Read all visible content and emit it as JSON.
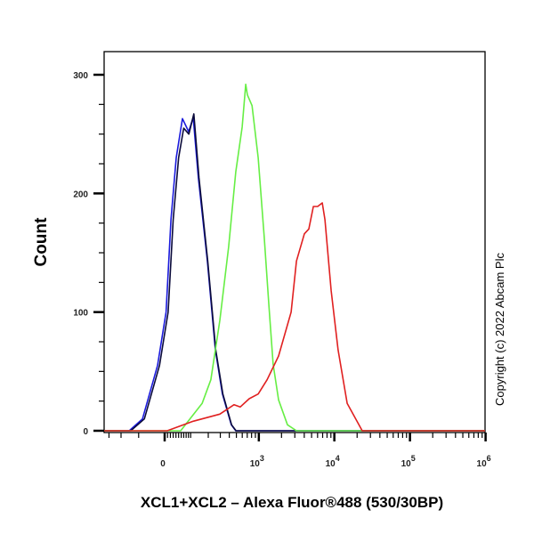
{
  "chart_data": {
    "type": "line",
    "xlabel": "XCL1+XCL2 – Alexa Fluor®488 (530/30BP)",
    "ylabel": "Count",
    "x_scale": "biexponential",
    "xlim": [
      -350,
      1000000
    ],
    "ylim": [
      0,
      300
    ],
    "y_ticks": [
      0,
      100,
      200,
      300
    ],
    "y_tick_labels": [
      "0",
      "100",
      "200",
      "300"
    ],
    "x_ticks": [
      0,
      1000,
      10000,
      100000,
      1000000
    ],
    "x_tick_labels": [
      {
        "base": "0",
        "exp": ""
      },
      {
        "base": "10",
        "exp": "3"
      },
      {
        "base": "10",
        "exp": "4"
      },
      {
        "base": "10",
        "exp": "5"
      },
      {
        "base": "10",
        "exp": "6"
      }
    ],
    "grid": false,
    "legend": "none",
    "series": [
      {
        "color": "#1a1adc",
        "points": [
          [
            -148,
            0
          ],
          [
            -83,
            10
          ],
          [
            -25,
            55
          ],
          [
            5,
            100
          ],
          [
            22,
            178
          ],
          [
            41,
            230
          ],
          [
            65,
            263
          ],
          [
            91,
            252
          ],
          [
            112,
            264
          ],
          [
            139,
            213
          ],
          [
            194,
            143
          ],
          [
            255,
            68
          ],
          [
            321,
            31
          ],
          [
            426,
            5
          ],
          [
            490,
            0
          ]
        ]
      },
      {
        "color": "#0a0a3a",
        "points": [
          [
            -140,
            0
          ],
          [
            -75,
            10
          ],
          [
            -18,
            55
          ],
          [
            12,
            100
          ],
          [
            30,
            178
          ],
          [
            50,
            230
          ],
          [
            70,
            255
          ],
          [
            92,
            250
          ],
          [
            115,
            267
          ],
          [
            142,
            213
          ],
          [
            196,
            143
          ],
          [
            258,
            68
          ],
          [
            326,
            31
          ],
          [
            430,
            5
          ],
          [
            495,
            0
          ]
        ]
      },
      {
        "color": "#66ee44",
        "points": [
          [
            58,
            0
          ],
          [
            160,
            23
          ],
          [
            219,
            43
          ],
          [
            295,
            93
          ],
          [
            392,
            155
          ],
          [
            491,
            218
          ],
          [
            598,
            256
          ],
          [
            669,
            292
          ],
          [
            705,
            283
          ],
          [
            812,
            274
          ],
          [
            980,
            230
          ],
          [
            1180,
            163
          ],
          [
            1360,
            106
          ],
          [
            1550,
            56
          ],
          [
            1830,
            26
          ],
          [
            2400,
            5
          ],
          [
            3150,
            0
          ]
        ]
      },
      {
        "color": "#e02020",
        "points": [
          [
            9,
            0
          ],
          [
            112,
            8
          ],
          [
            295,
            14
          ],
          [
            465,
            22
          ],
          [
            563,
            20
          ],
          [
            743,
            27
          ],
          [
            980,
            31
          ],
          [
            1288,
            43
          ],
          [
            1830,
            63
          ],
          [
            2680,
            100
          ],
          [
            3150,
            143
          ],
          [
            4010,
            166
          ],
          [
            4600,
            170
          ],
          [
            5280,
            189
          ],
          [
            6020,
            189
          ],
          [
            6920,
            192
          ],
          [
            7500,
            178
          ],
          [
            9070,
            118
          ],
          [
            11200,
            68
          ],
          [
            14800,
            23
          ],
          [
            23400,
            0
          ]
        ]
      }
    ]
  },
  "copyright": "Copyright (c) 2022 Abcam Plc"
}
